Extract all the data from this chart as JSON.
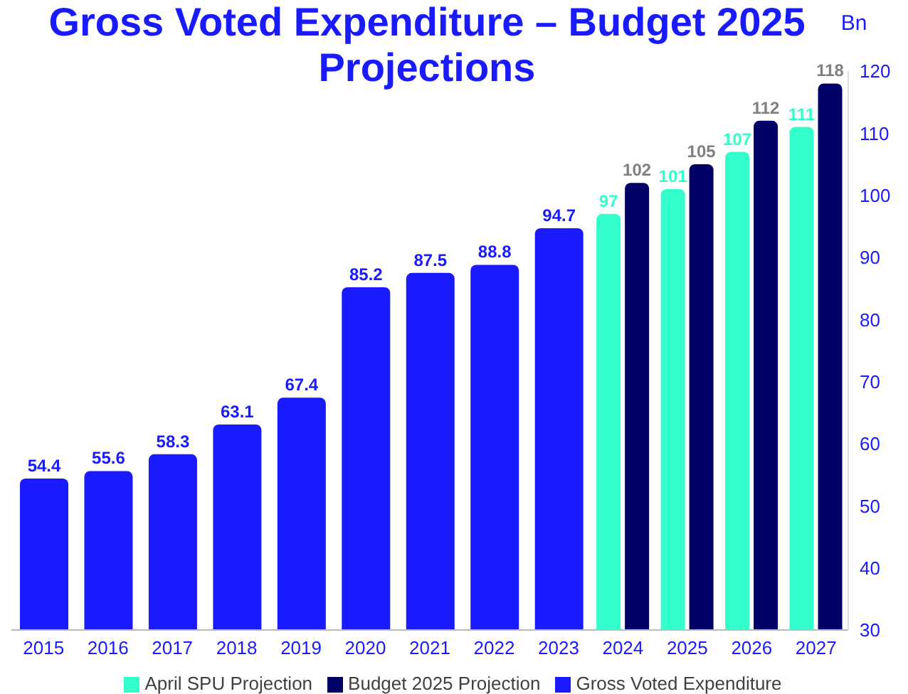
{
  "chart_data": {
    "type": "bar",
    "title": "Gross Voted Expenditure – Budget 2025 Projections",
    "ylabel": "Bn",
    "categories": [
      "2015",
      "2016",
      "2017",
      "2018",
      "2019",
      "2020",
      "2021",
      "2022",
      "2023",
      "2024",
      "2025",
      "2026",
      "2027"
    ],
    "series": [
      {
        "name": "Gross Voted Expenditure",
        "color": "#1a1aff",
        "values": [
          54.4,
          55.6,
          58.3,
          63.1,
          67.4,
          85.2,
          87.5,
          88.8,
          94.7,
          null,
          null,
          null,
          null
        ]
      },
      {
        "name": "April SPU Projection",
        "color": "#33ffcc",
        "values": [
          null,
          null,
          null,
          null,
          null,
          null,
          null,
          null,
          null,
          97,
          101,
          107,
          111
        ]
      },
      {
        "name": "Budget 2025 Projection",
        "color": "#000066",
        "values": [
          null,
          null,
          null,
          null,
          null,
          null,
          null,
          null,
          null,
          102,
          105,
          112,
          118
        ]
      }
    ],
    "ylim": [
      30,
      120
    ],
    "yticks": [
      30,
      40,
      50,
      60,
      70,
      80,
      90,
      100,
      110,
      120
    ],
    "data_labels": true,
    "grid": false,
    "legend": "bottom"
  }
}
